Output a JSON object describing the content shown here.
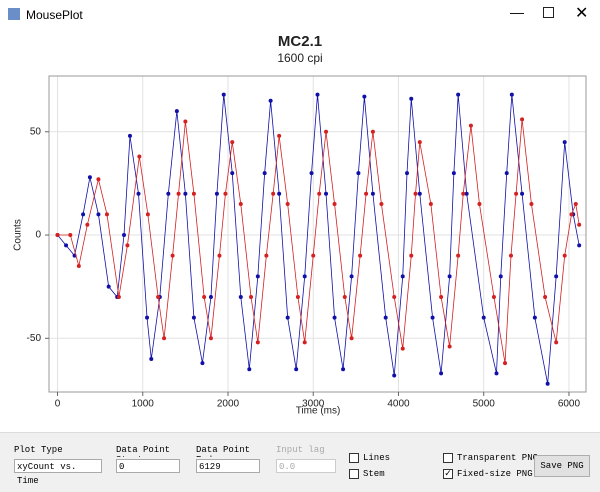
{
  "window": {
    "title": "MousePlot"
  },
  "chart_data": {
    "type": "line",
    "title": "MC2.1",
    "subtitle": "1600 cpi",
    "x_label": "Time (ms)",
    "y_label": "Counts",
    "xlim": [
      -100,
      6200
    ],
    "ylim": [
      -76,
      77
    ],
    "xticks": [
      0,
      1000,
      2000,
      3000,
      4000,
      5000,
      6000
    ],
    "yticks": [
      -50,
      0,
      50
    ],
    "grid": true,
    "series": [
      {
        "color": "#1010a8",
        "x": [
          0,
          100,
          200,
          300,
          380,
          480,
          600,
          700,
          780,
          850,
          950,
          1050,
          1100,
          1200,
          1300,
          1400,
          1500,
          1600,
          1700,
          1800,
          1870,
          1950,
          2050,
          2150,
          2250,
          2350,
          2430,
          2500,
          2600,
          2700,
          2800,
          2900,
          2980,
          3050,
          3150,
          3250,
          3350,
          3450,
          3530,
          3600,
          3700,
          3850,
          3950,
          4050,
          4100,
          4150,
          4250,
          4400,
          4500,
          4600,
          4650,
          4700,
          4800,
          5000,
          5150,
          5200,
          5270,
          5330,
          5450,
          5600,
          5750,
          5850,
          5950,
          6050,
          6120
        ],
        "values": [
          0,
          -5,
          -10,
          10,
          28,
          10,
          -25,
          -30,
          0,
          48,
          20,
          -40,
          -60,
          -30,
          20,
          60,
          20,
          -40,
          -62,
          -30,
          20,
          68,
          30,
          -30,
          -65,
          -20,
          30,
          65,
          20,
          -40,
          -65,
          -20,
          30,
          68,
          20,
          -40,
          -65,
          -20,
          30,
          67,
          20,
          -40,
          -68,
          -20,
          30,
          66,
          20,
          -40,
          -67,
          -20,
          30,
          68,
          20,
          -40,
          -67,
          -20,
          30,
          68,
          20,
          -40,
          -72,
          -20,
          45,
          10,
          -5
        ]
      },
      {
        "color": "#d42020",
        "x": [
          0,
          150,
          250,
          350,
          480,
          580,
          720,
          820,
          960,
          1060,
          1180,
          1250,
          1350,
          1420,
          1500,
          1600,
          1720,
          1800,
          1900,
          1970,
          2050,
          2150,
          2270,
          2350,
          2450,
          2530,
          2600,
          2700,
          2820,
          2900,
          3000,
          3070,
          3150,
          3250,
          3370,
          3450,
          3550,
          3620,
          3700,
          3800,
          3950,
          4050,
          4150,
          4200,
          4250,
          4380,
          4500,
          4600,
          4700,
          4760,
          4850,
          4950,
          5120,
          5250,
          5320,
          5380,
          5450,
          5560,
          5720,
          5850,
          5950,
          6030,
          6080,
          6120
        ],
        "values": [
          0,
          0,
          -15,
          5,
          27,
          10,
          -30,
          -5,
          38,
          10,
          -30,
          -50,
          -10,
          20,
          55,
          20,
          -30,
          -50,
          -10,
          20,
          45,
          15,
          -30,
          -52,
          -10,
          20,
          48,
          15,
          -30,
          -52,
          -10,
          20,
          50,
          15,
          -30,
          -50,
          -10,
          20,
          50,
          15,
          -30,
          -55,
          -10,
          20,
          45,
          15,
          -30,
          -54,
          -10,
          20,
          53,
          15,
          -30,
          -62,
          -10,
          20,
          56,
          15,
          -30,
          -52,
          -10,
          10,
          15,
          5
        ]
      }
    ]
  },
  "controls": {
    "plot_type_label": "Plot Type",
    "plot_type_value": "xyCount vs. Time",
    "start_label": "Data Point Start",
    "start_value": "0",
    "end_label": "Data Point End",
    "end_value": "6129",
    "lag_label": "Input lag",
    "lag_value": "0.0",
    "lines": "Lines",
    "stem": "Stem",
    "transparent": "Transparent PNG",
    "fixed": "Fixed-size PNG",
    "save": "Save PNG"
  }
}
